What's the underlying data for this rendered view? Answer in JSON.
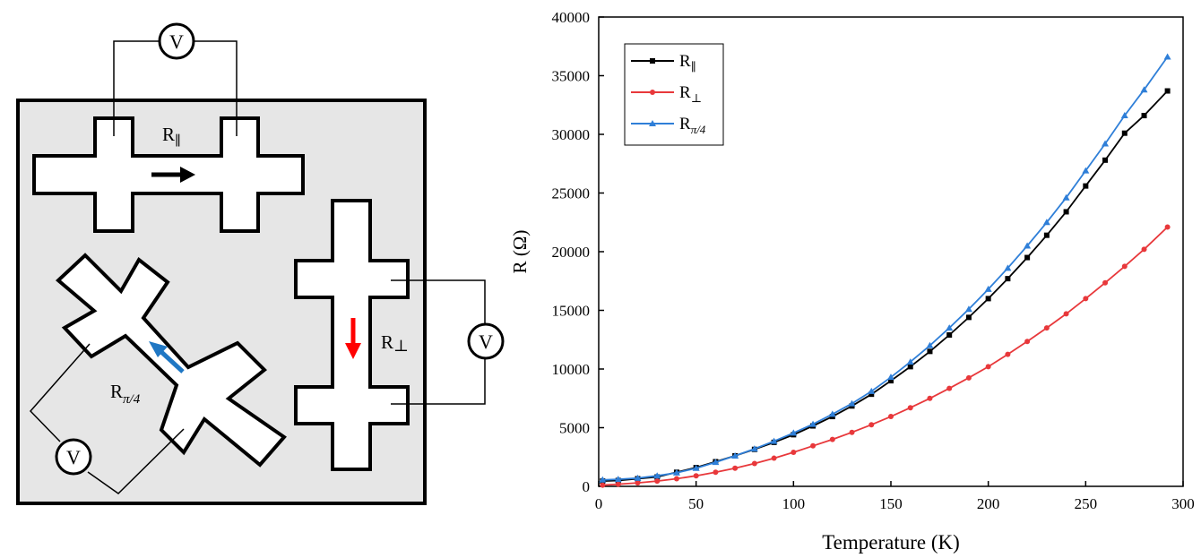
{
  "diagram": {
    "voltmeter_label": "V",
    "labels": {
      "par_main": "R",
      "par_sub": "∥",
      "perp_main": "R",
      "perp_sub": "⊥",
      "diag_main": "R",
      "diag_sub": "π/4"
    },
    "colors": {
      "substrate": "#e6e6e6",
      "par_arrow": "#000000",
      "perp_arrow": "#ff0000",
      "diag_arrow": "#1f77c4"
    }
  },
  "chart_data": {
    "type": "line",
    "xlabel": "Temperature (K)",
    "ylabel": "R (Ω)",
    "xlim": [
      0,
      300
    ],
    "ylim": [
      0,
      40000
    ],
    "xticks": [
      "0",
      "50",
      "100",
      "150",
      "200",
      "250",
      "300"
    ],
    "yticks": [
      "0",
      "5000",
      "10000",
      "15000",
      "20000",
      "25000",
      "30000",
      "35000",
      "40000"
    ],
    "grid": false,
    "legend_position": "top-left",
    "series": [
      {
        "name": "R∥",
        "legend_main": "R",
        "legend_sub": "∥",
        "color": "#000000",
        "marker": "square",
        "x": [
          2,
          10,
          20,
          30,
          40,
          50,
          60,
          70,
          80,
          90,
          100,
          110,
          120,
          130,
          140,
          150,
          160,
          170,
          180,
          190,
          200,
          210,
          220,
          230,
          240,
          250,
          260,
          270,
          280,
          292
        ],
        "y": [
          450,
          500,
          650,
          800,
          1200,
          1600,
          2100,
          2600,
          3150,
          3750,
          4400,
          5150,
          5950,
          6850,
          7850,
          9000,
          10200,
          11500,
          12900,
          14400,
          16000,
          17700,
          19500,
          21400,
          23400,
          25600,
          27800,
          30100,
          31600,
          33700
        ]
      },
      {
        "name": "R⊥",
        "legend_main": "R",
        "legend_sub": "⊥",
        "color": "#e8383b",
        "marker": "circle",
        "x": [
          2,
          10,
          20,
          30,
          40,
          50,
          60,
          70,
          80,
          90,
          100,
          110,
          120,
          130,
          140,
          150,
          160,
          170,
          180,
          190,
          200,
          210,
          220,
          230,
          240,
          250,
          260,
          270,
          280,
          292
        ],
        "y": [
          100,
          180,
          300,
          450,
          650,
          900,
          1200,
          1550,
          1950,
          2400,
          2900,
          3450,
          4000,
          4600,
          5250,
          5950,
          6700,
          7500,
          8350,
          9250,
          10200,
          11250,
          12350,
          13500,
          14700,
          16000,
          17350,
          18750,
          20200,
          22100
        ]
      },
      {
        "name": "Rπ/4",
        "legend_main": "R",
        "legend_sub": "π/4",
        "color": "#2f7fd8",
        "marker": "triangle",
        "x": [
          2,
          10,
          20,
          30,
          40,
          50,
          60,
          70,
          80,
          90,
          100,
          110,
          120,
          130,
          140,
          150,
          160,
          170,
          180,
          190,
          200,
          210,
          220,
          230,
          240,
          250,
          260,
          270,
          280,
          292
        ],
        "y": [
          550,
          600,
          700,
          900,
          1150,
          1550,
          2050,
          2600,
          3200,
          3850,
          4550,
          5300,
          6150,
          7050,
          8100,
          9300,
          10600,
          12000,
          13500,
          15100,
          16800,
          18600,
          20500,
          22500,
          24600,
          26900,
          29200,
          31600,
          33800,
          36600
        ]
      }
    ]
  }
}
